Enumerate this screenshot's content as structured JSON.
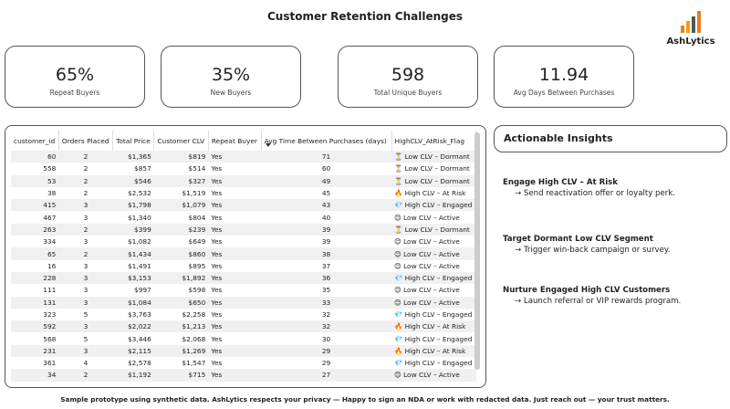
{
  "header": {
    "title": "Customer Retention Challenges",
    "logo": "AshLytics"
  },
  "kpis": [
    {
      "value": "65%",
      "label": "Repeat Buyers"
    },
    {
      "value": "35%",
      "label": "New Buyers"
    },
    {
      "value": "598",
      "label": "Total Unique Buyers"
    },
    {
      "value": "11.94",
      "label": "Avg Days Between Purchases"
    }
  ],
  "table": {
    "columns": [
      "customer_id",
      "Orders Placed",
      "Total Price",
      "Customer CLV",
      "Repeat Buyer",
      "Avg Time Between Purchases (days)",
      "HighCLV_AtRisk_Flag"
    ],
    "rows": [
      [
        60,
        2,
        "$1,365",
        "$819",
        "Yes",
        71,
        "⏳ Low CLV – Dormant"
      ],
      [
        558,
        2,
        "$857",
        "$514",
        "Yes",
        60,
        "⏳ Low CLV – Dormant"
      ],
      [
        53,
        2,
        "$546",
        "$327",
        "Yes",
        49,
        "⏳ Low CLV – Dormant"
      ],
      [
        38,
        2,
        "$2,532",
        "$1,519",
        "Yes",
        45,
        "🔥 High CLV – At Risk"
      ],
      [
        415,
        3,
        "$1,798",
        "$1,079",
        "Yes",
        43,
        "💎 High CLV – Engaged"
      ],
      [
        467,
        3,
        "$1,340",
        "$804",
        "Yes",
        40,
        "😊 Low CLV – Active"
      ],
      [
        263,
        2,
        "$399",
        "$239",
        "Yes",
        39,
        "⏳ Low CLV – Dormant"
      ],
      [
        334,
        3,
        "$1,082",
        "$649",
        "Yes",
        39,
        "😊 Low CLV – Active"
      ],
      [
        65,
        2,
        "$1,434",
        "$860",
        "Yes",
        38,
        "😊 Low CLV – Active"
      ],
      [
        16,
        3,
        "$1,491",
        "$895",
        "Yes",
        37,
        "😊 Low CLV – Active"
      ],
      [
        228,
        3,
        "$3,153",
        "$1,892",
        "Yes",
        36,
        "💎 High CLV – Engaged"
      ],
      [
        111,
        3,
        "$997",
        "$598",
        "Yes",
        35,
        "😊 Low CLV – Active"
      ],
      [
        131,
        3,
        "$1,084",
        "$650",
        "Yes",
        33,
        "😊 Low CLV – Active"
      ],
      [
        323,
        5,
        "$3,763",
        "$2,258",
        "Yes",
        32,
        "💎 High CLV – Engaged"
      ],
      [
        592,
        3,
        "$2,022",
        "$1,213",
        "Yes",
        32,
        "🔥 High CLV – At Risk"
      ],
      [
        568,
        5,
        "$3,446",
        "$2,068",
        "Yes",
        30,
        "💎 High CLV – Engaged"
      ],
      [
        231,
        3,
        "$2,115",
        "$1,269",
        "Yes",
        29,
        "🔥 High CLV – At Risk"
      ],
      [
        361,
        4,
        "$2,578",
        "$1,547",
        "Yes",
        29,
        "💎 High CLV – Engaged"
      ],
      [
        34,
        2,
        "$1,192",
        "$715",
        "Yes",
        27,
        "😊 Low CLV – Active"
      ]
    ]
  },
  "insights": {
    "title": "Actionable Insights",
    "items": [
      {
        "heading": "Engage High CLV – At Risk",
        "action": "→ Send reactivation offer or loyalty perk."
      },
      {
        "heading": "Target Dormant Low CLV Segment",
        "action": "→ Trigger win-back campaign or survey."
      },
      {
        "heading": "Nurture Engaged High CLV Customers",
        "action": "→ Launch referral or VIP rewards program."
      }
    ]
  },
  "footer": "Sample prototype using synthetic data. AshLytics respects your privacy — Happy to sign an NDA or work with redacted data. Just reach out — your trust matters."
}
